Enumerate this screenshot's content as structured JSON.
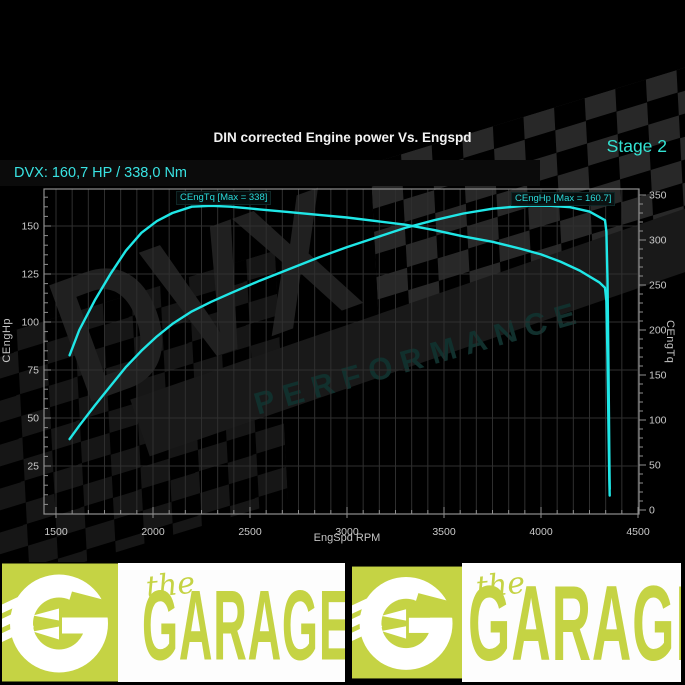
{
  "colors": {
    "background": "#000000",
    "curve_cyan": "#1fe7e7",
    "accent_cyan": "#39e3e3",
    "stage_cyan": "#33e2d2",
    "title_white": "#f2f2f2",
    "grid_gray": "#2f2f2f",
    "frame_gray": "#8f8f8f",
    "tick_label_gray": "#c9c9c9",
    "banner_yellow": "#c5d344",
    "banner_white": "#fdfdfd"
  },
  "header": {
    "stage_label": "Stage 2",
    "result_line": "DVX: 160,7 HP / 338,0 Nm"
  },
  "watermark": {
    "brand": "DVX",
    "brand_sub": "PERFORMANCE"
  },
  "chart_data": {
    "type": "line",
    "title": "DIN corrected Engine power Vs. Engspd",
    "xlabel": "EngSpd RPM",
    "ylabel_left": "CEngHp",
    "ylabel_right": "CEngTq",
    "x_range": [
      1438,
      4503
    ],
    "y_left_range": [
      0,
      169
    ],
    "y_right_range": [
      0,
      357
    ],
    "x_ticks": [
      1500,
      2000,
      2500,
      3000,
      3500,
      4000,
      4500
    ],
    "x_minor_step": 83.333,
    "y_left_ticks": [
      25,
      50,
      75,
      100,
      125,
      150
    ],
    "y_left_minor_step": 5,
    "y_right_ticks": [
      0,
      50,
      100,
      150,
      200,
      250,
      300,
      350
    ],
    "y_right_minor_step": 10,
    "grid": true,
    "legend_position": "curve-labels",
    "series": [
      {
        "name": "CEngTq",
        "axis": "right",
        "label": "CEngTq [Max = 338]",
        "max": 338,
        "units": "Nm",
        "points": [
          [
            1570,
            172
          ],
          [
            1620,
            200
          ],
          [
            1700,
            233
          ],
          [
            1780,
            262
          ],
          [
            1860,
            288
          ],
          [
            1940,
            308
          ],
          [
            2020,
            321
          ],
          [
            2100,
            330
          ],
          [
            2200,
            337
          ],
          [
            2300,
            338
          ],
          [
            2400,
            337
          ],
          [
            2550,
            334
          ],
          [
            2700,
            331
          ],
          [
            2850,
            328
          ],
          [
            3000,
            325
          ],
          [
            3150,
            321
          ],
          [
            3300,
            317
          ],
          [
            3450,
            311
          ],
          [
            3600,
            304
          ],
          [
            3750,
            298
          ],
          [
            3900,
            290
          ],
          [
            4000,
            284
          ],
          [
            4100,
            276
          ],
          [
            4200,
            266
          ],
          [
            4300,
            253
          ],
          [
            4330,
            247
          ],
          [
            4337,
            232
          ],
          [
            4343,
            170
          ],
          [
            4348,
            90
          ],
          [
            4352,
            35
          ],
          [
            4354,
            16
          ]
        ]
      },
      {
        "name": "CEngHp",
        "axis": "left",
        "label": "CEngHp [Max = 160.7]",
        "max": 160.7,
        "units": "HP",
        "points": [
          [
            1570,
            39
          ],
          [
            1620,
            46
          ],
          [
            1700,
            56.5
          ],
          [
            1780,
            66.5
          ],
          [
            1860,
            76.5
          ],
          [
            1940,
            85
          ],
          [
            2020,
            92.5
          ],
          [
            2100,
            99
          ],
          [
            2200,
            105.5
          ],
          [
            2300,
            110.5
          ],
          [
            2400,
            115
          ],
          [
            2550,
            121.5
          ],
          [
            2700,
            127.5
          ],
          [
            2850,
            133.5
          ],
          [
            3000,
            139
          ],
          [
            3150,
            144
          ],
          [
            3300,
            149
          ],
          [
            3450,
            153
          ],
          [
            3600,
            156.5
          ],
          [
            3750,
            159
          ],
          [
            3900,
            160.4
          ],
          [
            3950,
            160.7
          ],
          [
            4050,
            160.5
          ],
          [
            4150,
            159.8
          ],
          [
            4250,
            157.5
          ],
          [
            4330,
            153
          ],
          [
            4337,
            147
          ],
          [
            4343,
            122
          ],
          [
            4348,
            76
          ],
          [
            4352,
            32
          ],
          [
            4354,
            13
          ]
        ]
      }
    ]
  },
  "banner": {
    "segments": [
      {
        "kind": "logo"
      },
      {
        "kind": "wordmark",
        "line1": "the",
        "line2": "GARAGE"
      },
      {
        "kind": "logo"
      },
      {
        "kind": "wordmark",
        "line1": "the",
        "line2": "GARAGE"
      }
    ]
  }
}
